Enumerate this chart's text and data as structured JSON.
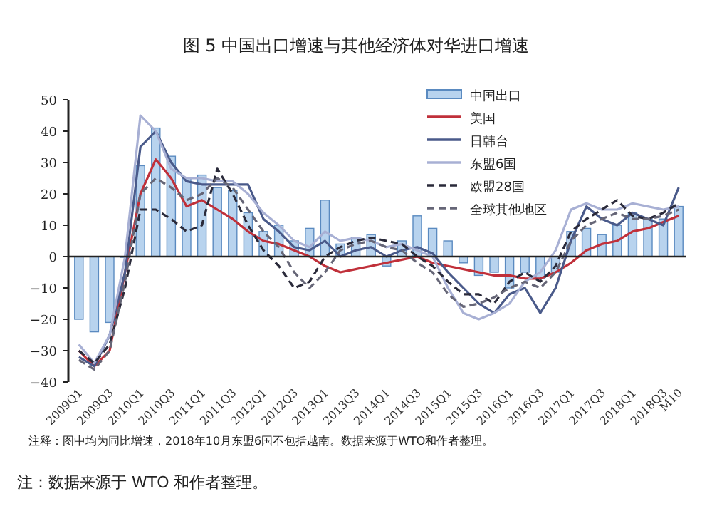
{
  "chart_data": {
    "type": "bar",
    "title": "图 5 中国出口增速与其他经济体对华进口增速",
    "categories": [
      "2009Q1",
      null,
      "2009Q3",
      null,
      "2010Q1",
      null,
      "2010Q3",
      null,
      "2011Q1",
      null,
      "2011Q3",
      null,
      "2012Q1",
      null,
      "2012Q3",
      null,
      "2013Q1",
      null,
      "2013Q3",
      null,
      "2014Q1",
      null,
      "2014Q3",
      null,
      "2015Q1",
      null,
      "2015Q3",
      null,
      "2016Q1",
      null,
      "2016Q3",
      null,
      "2017Q1",
      null,
      "2017Q3",
      null,
      "2018Q1",
      null,
      "2018Q3",
      "M10"
    ],
    "series": [
      {
        "name": "中国出口",
        "color": "#b8d3ee",
        "values": [
          -20,
          -24,
          -21,
          0,
          29,
          41,
          32,
          25,
          26,
          22,
          21,
          14,
          8,
          10,
          5,
          9,
          18,
          4,
          6,
          7,
          -3,
          5,
          13,
          9,
          5,
          -2,
          -6,
          -5,
          -10,
          -5,
          -7,
          -5,
          8,
          9,
          7,
          10,
          14,
          12,
          12,
          16
        ]
      },
      {
        "name": "美国",
        "type": "line",
        "color": "#c0303a",
        "values": [
          -30,
          -35,
          -30,
          -5,
          20,
          31,
          25,
          16,
          18,
          15,
          12,
          8,
          5,
          4,
          2,
          0,
          -3,
          -5,
          -4,
          -3,
          -2,
          -1,
          0,
          -2,
          -3,
          -4,
          -5,
          -6,
          -6,
          -7,
          -7,
          -5,
          -2,
          2,
          4,
          5,
          8,
          9,
          11,
          13
        ]
      },
      {
        "name": "日韩台",
        "type": "line",
        "color": "#4a5a8a",
        "values": [
          -32,
          -35,
          -25,
          -5,
          35,
          40,
          30,
          24,
          23,
          23,
          23,
          23,
          12,
          8,
          3,
          2,
          5,
          0,
          2,
          3,
          0,
          2,
          3,
          1,
          -5,
          -10,
          -15,
          -18,
          -12,
          -10,
          -18,
          -10,
          5,
          16,
          12,
          10,
          14,
          12,
          10,
          22
        ]
      },
      {
        "name": "东盟6国",
        "type": "line",
        "color": "#a8b0d4",
        "values": [
          -28,
          -34,
          -25,
          0,
          45,
          40,
          28,
          25,
          25,
          24,
          24,
          20,
          14,
          10,
          5,
          3,
          8,
          5,
          6,
          5,
          3,
          4,
          2,
          0,
          -10,
          -18,
          -20,
          -18,
          -15,
          -8,
          -5,
          2,
          15,
          17,
          15,
          15,
          17,
          16,
          15,
          16
        ]
      },
      {
        "name": "欧盟28国",
        "type": "line",
        "color": "#2a2a3a",
        "line_style": "dashed",
        "values": [
          -30,
          -34,
          -28,
          -10,
          15,
          15,
          12,
          8,
          10,
          28,
          20,
          10,
          2,
          -3,
          -10,
          -8,
          0,
          3,
          5,
          6,
          5,
          4,
          0,
          -3,
          -8,
          -12,
          -12,
          -15,
          -8,
          -5,
          -8,
          -3,
          8,
          12,
          15,
          18,
          13,
          12,
          14,
          17
        ]
      },
      {
        "name": "全球其他地区",
        "type": "line",
        "color": "#666677",
        "line_style": "dashed",
        "values": [
          -33,
          -36,
          -30,
          -8,
          20,
          25,
          22,
          18,
          20,
          25,
          22,
          15,
          8,
          3,
          -5,
          -10,
          -5,
          2,
          4,
          5,
          3,
          2,
          -2,
          -5,
          -12,
          -16,
          -15,
          -13,
          -10,
          -8,
          -10,
          -5,
          5,
          10,
          12,
          14,
          12,
          12,
          13,
          15
        ]
      }
    ],
    "ylim": [
      -40,
      50
    ],
    "yticks": [
      -40,
      -30,
      -20,
      -10,
      0,
      10,
      20,
      30,
      40,
      50
    ],
    "legend": "top right",
    "annotations": [
      "注释：图中均为同比增速，2018年10月东盟6国不包括越南。数据来源于WTO和作者整理。",
      "注：数据来源于 WTO 和作者整理。"
    ]
  }
}
